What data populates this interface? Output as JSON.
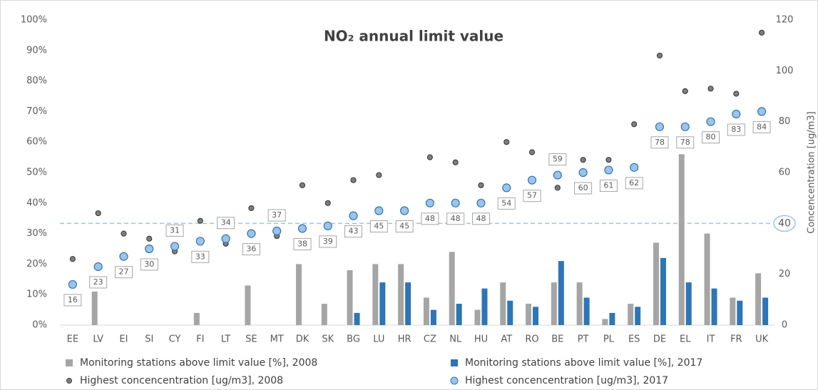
{
  "chart_data": {
    "type": "bar",
    "title": "NO₂ annual limit value",
    "y2_label": "Concencentration [ug/m3]",
    "categories": [
      "EE",
      "LV",
      "EI",
      "SI",
      "CY",
      "FI",
      "LT",
      "SE",
      "MT",
      "DK",
      "SK",
      "BG",
      "LU",
      "HR",
      "CZ",
      "NL",
      "HU",
      "AT",
      "RO",
      "BE",
      "PT",
      "PL",
      "ES",
      "DE",
      "EL",
      "IT",
      "FR",
      "UK"
    ],
    "series": [
      {
        "name": "Monitoring stations above limit value [%], 2008",
        "type": "bar",
        "color": "#a5a5a5",
        "values": [
          0,
          11,
          0,
          0,
          0,
          4,
          0,
          13,
          0,
          20,
          7,
          18,
          20,
          20,
          9,
          24,
          5,
          14,
          7,
          14,
          14,
          2,
          7,
          27,
          56,
          30,
          9,
          17
        ]
      },
      {
        "name": "Monitoring stations above limit value [%], 2017",
        "type": "bar",
        "color": "#2e75b6",
        "values": [
          0,
          0,
          0,
          0,
          0,
          0,
          0,
          0,
          0,
          0,
          0,
          4,
          14,
          14,
          5,
          7,
          12,
          8,
          6,
          21,
          9,
          4,
          6,
          22,
          14,
          12,
          8,
          9
        ]
      },
      {
        "name": "Highest concencentration [ug/m3], 2008",
        "type": "scatter",
        "axis": "y2",
        "color": "#404040",
        "values": [
          26,
          44,
          36,
          34,
          29,
          41,
          32,
          46,
          35,
          55,
          48,
          57,
          59,
          null,
          66,
          64,
          55,
          72,
          68,
          54,
          65,
          65,
          79,
          106,
          92,
          93,
          91,
          115
        ]
      },
      {
        "name": "Highest concencentration [ug/m3], 2017",
        "type": "scatter",
        "axis": "y2",
        "color": "#9dc3e6",
        "values": [
          16,
          23,
          27,
          30,
          31,
          33,
          34,
          36,
          37,
          38,
          39,
          43,
          45,
          45,
          48,
          48,
          48,
          54,
          57,
          59,
          60,
          61,
          62,
          78,
          78,
          80,
          83,
          84
        ]
      }
    ],
    "reference_line": {
      "value": 40,
      "axis": "y2",
      "color": "#9dc3e6"
    },
    "ylim": [
      0,
      100
    ],
    "yticks": [
      {
        "value": 0,
        "label": "0%"
      },
      {
        "value": 10,
        "label": "10%"
      },
      {
        "value": 20,
        "label": "20%"
      },
      {
        "value": 30,
        "label": "30%"
      },
      {
        "value": 40,
        "label": "40%"
      },
      {
        "value": 50,
        "label": "50%"
      },
      {
        "value": 60,
        "label": "60%"
      },
      {
        "value": 70,
        "label": "70%"
      },
      {
        "value": 80,
        "label": "80%"
      },
      {
        "value": 90,
        "label": "90%"
      },
      {
        "value": 100,
        "label": "100%"
      }
    ],
    "y2lim": [
      0,
      120
    ],
    "y2ticks": [
      0,
      20,
      40,
      60,
      80,
      100,
      120
    ],
    "grid": false
  }
}
